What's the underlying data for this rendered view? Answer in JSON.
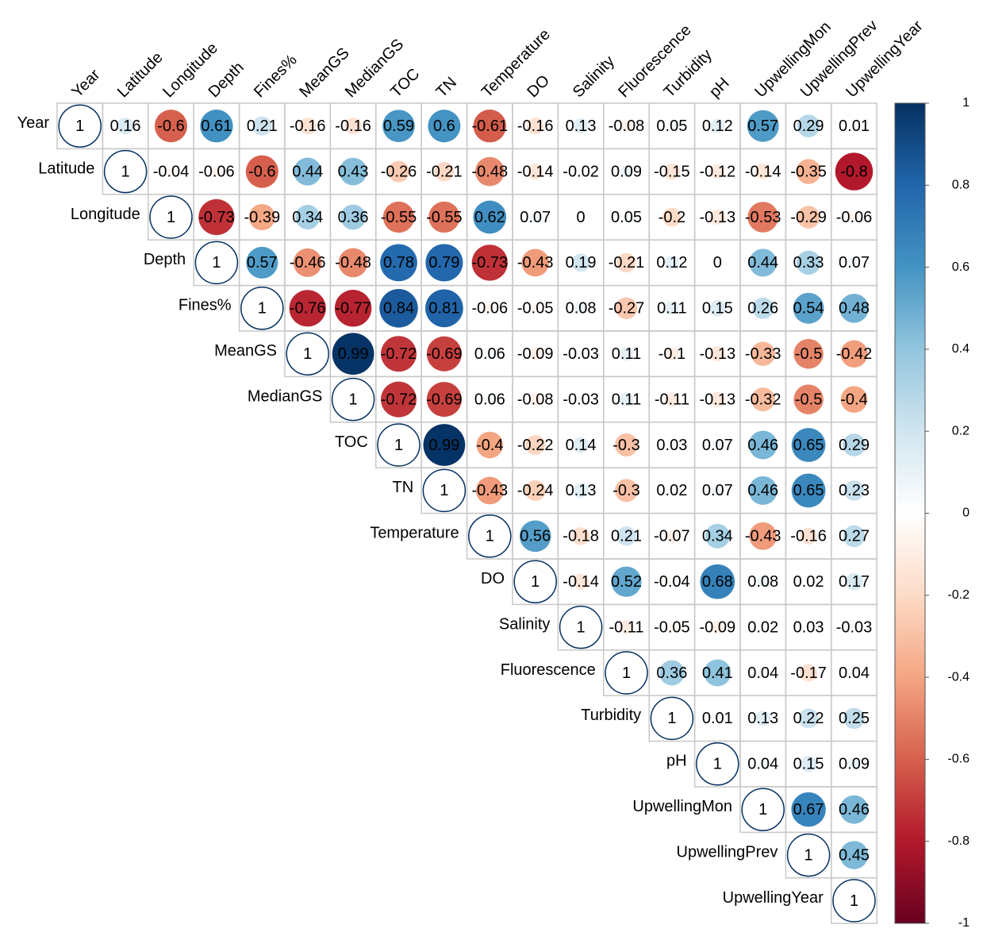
{
  "chart_data": {
    "type": "corrplot",
    "categories": [
      "Year",
      "Latitude",
      "Longitude",
      "Depth",
      "Fines%",
      "MeanGS",
      "MedianGS",
      "TOC",
      "TN",
      "Temperature",
      "DO",
      "Salinity",
      "Fluorescence",
      "Turbidity",
      "pH",
      "UpwellingMon",
      "UpwellingPrev",
      "UpwellingYear"
    ],
    "matrix": [
      [
        1,
        0.16,
        -0.6,
        0.61,
        0.21,
        -0.16,
        -0.16,
        0.59,
        0.6,
        -0.61,
        -0.16,
        0.13,
        -0.08,
        0.05,
        0.12,
        0.57,
        0.29,
        0.01
      ],
      [
        null,
        1,
        -0.04,
        -0.06,
        -0.6,
        0.44,
        0.43,
        -0.26,
        -0.21,
        -0.48,
        -0.14,
        -0.02,
        0.09,
        -0.15,
        -0.12,
        -0.14,
        -0.35,
        -0.8
      ],
      [
        null,
        null,
        1,
        -0.73,
        -0.39,
        0.34,
        0.36,
        -0.55,
        -0.55,
        0.62,
        0.07,
        0,
        0.05,
        -0.2,
        -0.13,
        -0.53,
        -0.29,
        -0.06
      ],
      [
        null,
        null,
        null,
        1,
        0.57,
        -0.46,
        -0.48,
        0.78,
        0.79,
        -0.73,
        -0.43,
        0.19,
        -0.21,
        0.12,
        0,
        0.44,
        0.33,
        0.07
      ],
      [
        null,
        null,
        null,
        null,
        1,
        -0.76,
        -0.77,
        0.84,
        0.81,
        -0.06,
        -0.05,
        0.08,
        -0.27,
        0.11,
        0.15,
        0.26,
        0.54,
        0.48
      ],
      [
        null,
        null,
        null,
        null,
        null,
        1,
        0.99,
        -0.72,
        -0.69,
        0.06,
        -0.09,
        -0.03,
        0.11,
        -0.1,
        -0.13,
        -0.33,
        -0.5,
        -0.42
      ],
      [
        null,
        null,
        null,
        null,
        null,
        null,
        1,
        -0.72,
        -0.69,
        0.06,
        -0.08,
        -0.03,
        0.11,
        -0.11,
        -0.13,
        -0.32,
        -0.5,
        -0.4
      ],
      [
        null,
        null,
        null,
        null,
        null,
        null,
        null,
        1,
        0.99,
        -0.4,
        -0.22,
        0.14,
        -0.3,
        0.03,
        0.07,
        0.46,
        0.65,
        0.29
      ],
      [
        null,
        null,
        null,
        null,
        null,
        null,
        null,
        null,
        1,
        -0.43,
        -0.24,
        0.13,
        -0.3,
        0.02,
        0.07,
        0.46,
        0.65,
        0.23
      ],
      [
        null,
        null,
        null,
        null,
        null,
        null,
        null,
        null,
        null,
        1,
        0.56,
        -0.18,
        0.21,
        -0.07,
        0.34,
        -0.43,
        -0.16,
        0.27
      ],
      [
        null,
        null,
        null,
        null,
        null,
        null,
        null,
        null,
        null,
        null,
        1,
        -0.14,
        0.52,
        -0.04,
        0.68,
        0.08,
        0.02,
        0.17
      ],
      [
        null,
        null,
        null,
        null,
        null,
        null,
        null,
        null,
        null,
        null,
        null,
        1,
        -0.11,
        -0.05,
        -0.09,
        0.02,
        0.03,
        -0.03
      ],
      [
        null,
        null,
        null,
        null,
        null,
        null,
        null,
        null,
        null,
        null,
        null,
        null,
        1,
        0.36,
        0.41,
        0.04,
        -0.17,
        0.04
      ],
      [
        null,
        null,
        null,
        null,
        null,
        null,
        null,
        null,
        null,
        null,
        null,
        null,
        null,
        1,
        0.01,
        0.13,
        0.22,
        0.25
      ],
      [
        null,
        null,
        null,
        null,
        null,
        null,
        null,
        null,
        null,
        null,
        null,
        null,
        null,
        null,
        1,
        0.04,
        0.15,
        0.09
      ],
      [
        null,
        null,
        null,
        null,
        null,
        null,
        null,
        null,
        null,
        null,
        null,
        null,
        null,
        null,
        null,
        1,
        0.67,
        0.46
      ],
      [
        null,
        null,
        null,
        null,
        null,
        null,
        null,
        null,
        null,
        null,
        null,
        null,
        null,
        null,
        null,
        null,
        1,
        0.45
      ],
      [
        null,
        null,
        null,
        null,
        null,
        null,
        null,
        null,
        null,
        null,
        null,
        null,
        null,
        null,
        null,
        null,
        null,
        1
      ]
    ],
    "colors": [
      "#67001F",
      "#B2182B",
      "#D6604D",
      "#F4A582",
      "#FDDBC7",
      "#FFFFFF",
      "#D1E5F0",
      "#92C5DE",
      "#4393C3",
      "#2166AC",
      "#053061"
    ],
    "clim": [
      -1,
      1
    ],
    "cticks": [
      1,
      0.8,
      0.6,
      0.4,
      0.2,
      0,
      -0.2,
      -0.4,
      -0.6,
      -0.8,
      -1
    ]
  }
}
